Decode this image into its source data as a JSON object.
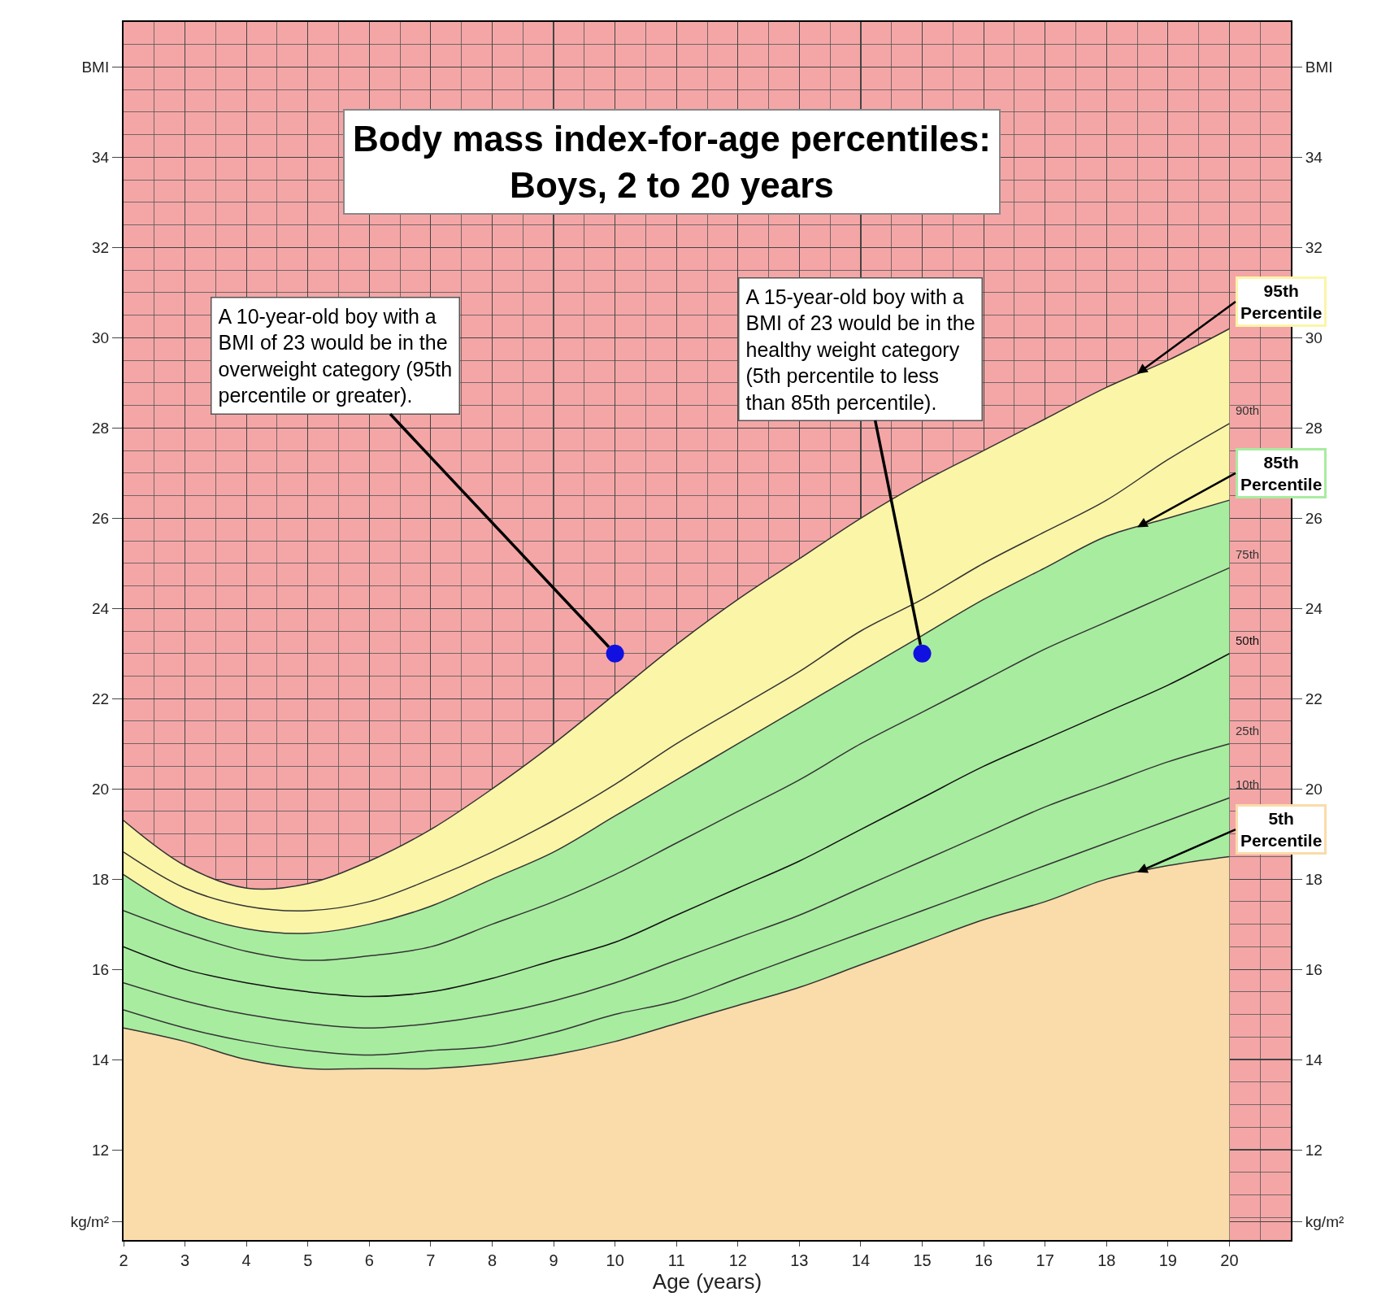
{
  "chart_data": {
    "type": "line",
    "title": "Body mass index-for-age percentiles: Boys, 2 to 20 years",
    "xlabel": "Age (years)",
    "x": [
      2,
      3,
      4,
      5,
      6,
      7,
      8,
      9,
      10,
      11,
      12,
      13,
      14,
      15,
      16,
      17,
      18,
      19,
      20
    ],
    "series": [
      {
        "name": "5th Percentile",
        "type": "area",
        "color": "#f9dcaa",
        "values": [
          14.7,
          14.4,
          14.0,
          13.8,
          13.8,
          13.8,
          13.9,
          14.1,
          14.4,
          14.8,
          15.2,
          15.6,
          16.1,
          16.6,
          17.1,
          17.5,
          18.0,
          18.3,
          18.5
        ]
      },
      {
        "name": "85th Percentile",
        "type": "area",
        "color": "#a8eca0",
        "values": [
          18.1,
          17.3,
          16.9,
          16.8,
          17.0,
          17.4,
          18.0,
          18.6,
          19.4,
          20.2,
          21.0,
          21.8,
          22.6,
          23.4,
          24.2,
          24.9,
          25.6,
          26.0,
          26.4
        ]
      },
      {
        "name": "95th Percentile",
        "type": "area",
        "color": "#fbf5a8",
        "values": [
          19.3,
          18.3,
          17.8,
          17.9,
          18.4,
          19.1,
          20.0,
          21.0,
          22.1,
          23.2,
          24.2,
          25.1,
          26.0,
          26.8,
          27.5,
          28.2,
          28.9,
          29.5,
          30.2
        ]
      },
      {
        "name": "10th",
        "color": "#333333",
        "values": [
          15.1,
          14.7,
          14.4,
          14.2,
          14.1,
          14.2,
          14.3,
          14.6,
          15.0,
          15.3,
          15.8,
          16.3,
          16.8,
          17.3,
          17.8,
          18.3,
          18.8,
          19.3,
          19.8
        ]
      },
      {
        "name": "25th",
        "color": "#333333",
        "values": [
          15.7,
          15.3,
          15.0,
          14.8,
          14.7,
          14.8,
          15.0,
          15.3,
          15.7,
          16.2,
          16.7,
          17.2,
          17.8,
          18.4,
          19.0,
          19.6,
          20.1,
          20.6,
          21.0
        ]
      },
      {
        "name": "50th",
        "color": "#111111",
        "values": [
          16.5,
          16.0,
          15.7,
          15.5,
          15.4,
          15.5,
          15.8,
          16.2,
          16.6,
          17.2,
          17.8,
          18.4,
          19.1,
          19.8,
          20.5,
          21.1,
          21.7,
          22.3,
          23.0
        ]
      },
      {
        "name": "75th",
        "color": "#333333",
        "values": [
          17.3,
          16.8,
          16.4,
          16.2,
          16.3,
          16.5,
          17.0,
          17.5,
          18.1,
          18.8,
          19.5,
          20.2,
          21.0,
          21.7,
          22.4,
          23.1,
          23.7,
          24.3,
          24.9
        ]
      },
      {
        "name": "90th",
        "color": "#333333",
        "values": [
          18.6,
          17.8,
          17.4,
          17.3,
          17.5,
          18.0,
          18.6,
          19.3,
          20.1,
          21.0,
          21.8,
          22.6,
          23.5,
          24.2,
          25.0,
          25.7,
          26.4,
          27.3,
          28.1
        ]
      },
      {
        "type": "scatter",
        "color": "#1010e0",
        "marker": "circle",
        "x": [
          10,
          15
        ],
        "values": [
          23,
          23
        ]
      }
    ],
    "annotations": [
      {
        "text": "A 10-year-old boy with a BMI of 23 would be in the overweight category (95th percentile or greater).",
        "x": 10,
        "y": 23
      },
      {
        "text": "A 15-year-old boy with a BMI of 23 would be in the healthy weight category (5th percentile to less than 85th percentile).",
        "x": 15,
        "y": 23
      }
    ],
    "bands": [
      {
        "axis": "y",
        "from": 10,
        "to": 37,
        "color": "#f4a6a6"
      }
    ],
    "xlim": [
      2,
      21
    ],
    "xticks": [
      2,
      3,
      4,
      5,
      6,
      7,
      8,
      9,
      10,
      11,
      12,
      13,
      14,
      15,
      16,
      17,
      18,
      19,
      20
    ],
    "ylim": [
      10,
      37
    ],
    "yticks": [
      {
        "value": 10.4,
        "label": "kg/m²"
      },
      12,
      14,
      16,
      18,
      20,
      22,
      24,
      26,
      28,
      30,
      32,
      34,
      {
        "value": 36,
        "label": "BMI"
      }
    ],
    "y2lim": [
      10,
      37
    ],
    "y2ticks": [
      {
        "value": 10.4,
        "label": "kg/m²"
      },
      12,
      14,
      16,
      18,
      20,
      22,
      24,
      26,
      28,
      30,
      32,
      34,
      {
        "value": 36,
        "label": "BMI"
      }
    ],
    "grid": true,
    "legend": false
  }
}
